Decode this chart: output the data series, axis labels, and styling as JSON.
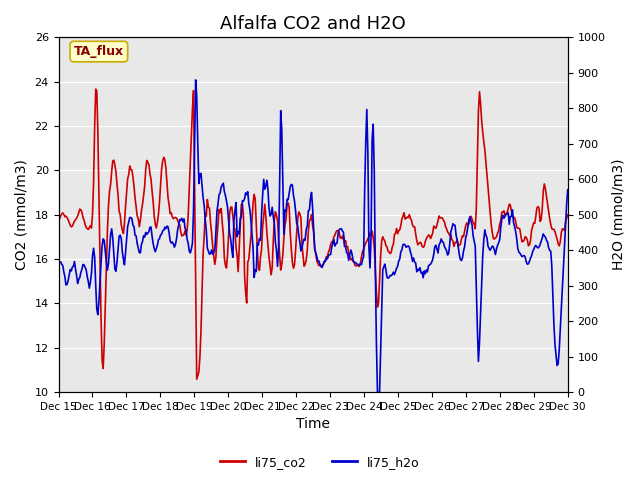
{
  "title": "Alfalfa CO2 and H2O",
  "xlabel": "Time",
  "ylabel_left": "CO2 (mmol/m3)",
  "ylabel_right": "H2O (mmol/m3)",
  "annotation": "TA_flux",
  "annotation_bg": "#ffffcc",
  "annotation_border": "#ccaa00",
  "ylim_left": [
    10,
    26
  ],
  "ylim_right": [
    0,
    1000
  ],
  "yticks_left": [
    10,
    12,
    14,
    16,
    18,
    20,
    22,
    24,
    26
  ],
  "yticks_right": [
    0,
    100,
    200,
    300,
    400,
    500,
    600,
    700,
    800,
    900,
    1000
  ],
  "color_co2": "#cc0000",
  "color_h2o": "#0000cc",
  "legend_co2": "li75_co2",
  "legend_h2o": "li75_h2o",
  "bg_color": "#e8e8e8",
  "line_width": 1.2,
  "title_fontsize": 13,
  "axis_fontsize": 10,
  "tick_fontsize": 8,
  "xticklabels": [
    "Dec 15",
    "Dec 16",
    "Dec 17",
    "Dec 18",
    "Dec 19",
    "Dec 20",
    "Dec 21",
    "Dec 22",
    "Dec 23",
    "Dec 24",
    "Dec 25",
    "Dec 26",
    "Dec 27",
    "Dec 28",
    "Dec 29",
    "Dec 30"
  ],
  "xtick_positions": [
    0,
    1,
    2,
    3,
    4,
    5,
    6,
    7,
    8,
    9,
    10,
    11,
    12,
    13,
    14,
    15
  ]
}
